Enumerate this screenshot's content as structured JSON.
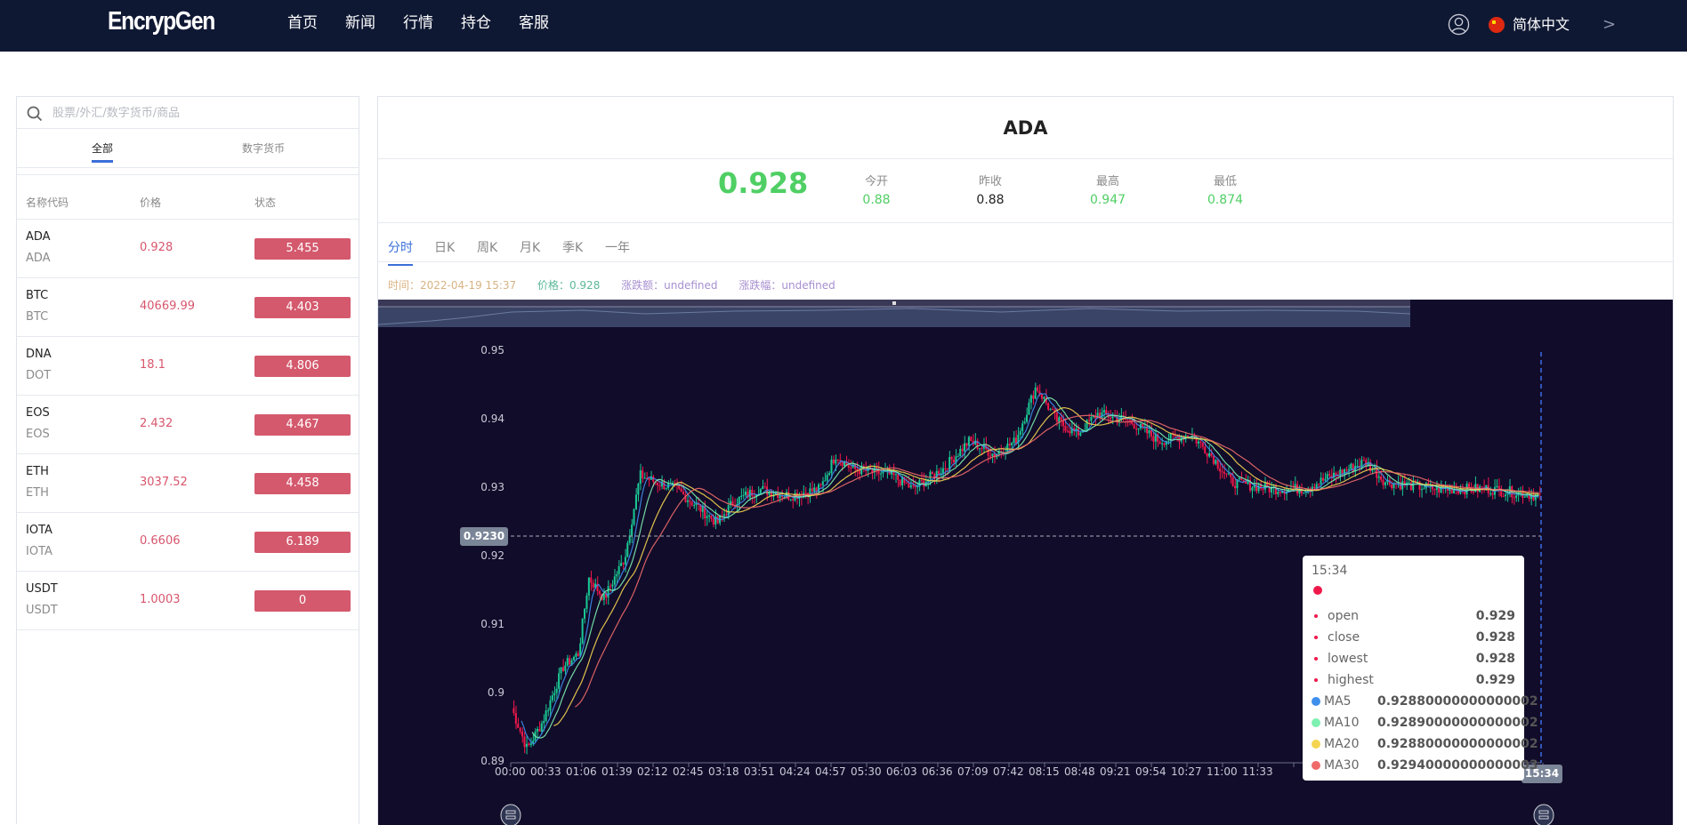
{
  "header": {
    "logo": "EncrypGen",
    "nav": [
      "首页",
      "新闻",
      "行情",
      "持仓",
      "客服"
    ],
    "language": "简体中文",
    "icons": {
      "user": "user-circle-icon",
      "flag": "china-flag-icon",
      "more": "chevron-right-icon"
    }
  },
  "sidebar": {
    "search_placeholder": "股票/外汇/数字货币/商品",
    "tabs": [
      {
        "label": "全部",
        "active": true
      },
      {
        "label": "数字货币",
        "active": false
      }
    ],
    "columns": [
      "名称代码",
      "价格",
      "状态"
    ],
    "rows": [
      {
        "name": "ADA",
        "code": "ADA",
        "price": "0.928",
        "status": "5.455"
      },
      {
        "name": "BTC",
        "code": "BTC",
        "price": "40669.99",
        "status": "4.403"
      },
      {
        "name": "DNA",
        "code": "DOT",
        "price": "18.1",
        "status": "4.806"
      },
      {
        "name": "EOS",
        "code": "EOS",
        "price": "2.432",
        "status": "4.467"
      },
      {
        "name": "ETH",
        "code": "ETH",
        "price": "3037.52",
        "status": "4.458"
      },
      {
        "name": "IOTA",
        "code": "IOTA",
        "price": "0.6606",
        "status": "6.189"
      },
      {
        "name": "USDT",
        "code": "USDT",
        "price": "1.0003",
        "status": "0"
      }
    ],
    "status_color": "#d4596d"
  },
  "main": {
    "symbol": "ADA",
    "price": "0.928",
    "stats": {
      "open": {
        "label": "今开",
        "value": "0.88"
      },
      "prev_close": {
        "label": "昨收",
        "value": "0.88"
      },
      "high": {
        "label": "最高",
        "value": "0.947"
      },
      "low": {
        "label": "最低",
        "value": "0.874"
      }
    },
    "chart_tabs": [
      {
        "label": "分时",
        "active": true
      },
      {
        "label": "日K",
        "active": false
      },
      {
        "label": "周K",
        "active": false
      },
      {
        "label": "月K",
        "active": false
      },
      {
        "label": "季K",
        "active": false
      },
      {
        "label": "一年",
        "active": false
      }
    ],
    "info": {
      "time": "时间：2022-04-19 15:37",
      "price": "价格：0.928",
      "change": "涨跌额：undefined",
      "change_pct": "涨跌幅：undefined"
    }
  },
  "chart": {
    "y_ticks": [
      "0.95",
      "0.94",
      "0.93",
      "0.92",
      "0.91",
      "0.9",
      "0.89"
    ],
    "x_ticks": [
      "00:00",
      "00:33",
      "01:06",
      "01:39",
      "02:12",
      "02:45",
      "03:18",
      "03:51",
      "04:24",
      "04:57",
      "05:30",
      "06:03",
      "06:36",
      "07:09",
      "07:42",
      "08:15",
      "08:48",
      "09:21",
      "09:54",
      "10:27",
      "11:00",
      "11:33"
    ],
    "crosshair_price": "0.9230",
    "crosshair_time": "15:34",
    "tooltip": {
      "time": "15:34",
      "ohlc": [
        {
          "label": "open",
          "value": "0.929"
        },
        {
          "label": "close",
          "value": "0.928"
        },
        {
          "label": "lowest",
          "value": "0.928"
        },
        {
          "label": "highest",
          "value": "0.929"
        }
      ],
      "ma": [
        {
          "label": "MA5",
          "value": "0.92880000000000002",
          "color": "#3f8fec"
        },
        {
          "label": "MA10",
          "value": "0.92890000000000002",
          "color": "#7ef0b0"
        },
        {
          "label": "MA20",
          "value": "0.92880000000000002",
          "color": "#f5d44f"
        },
        {
          "label": "MA30",
          "value": "0.92940000000000003",
          "color": "#f06a6a"
        }
      ]
    },
    "colors": {
      "background": "#110c2a",
      "up": "#f0184a",
      "down": "#1ac994"
    }
  }
}
